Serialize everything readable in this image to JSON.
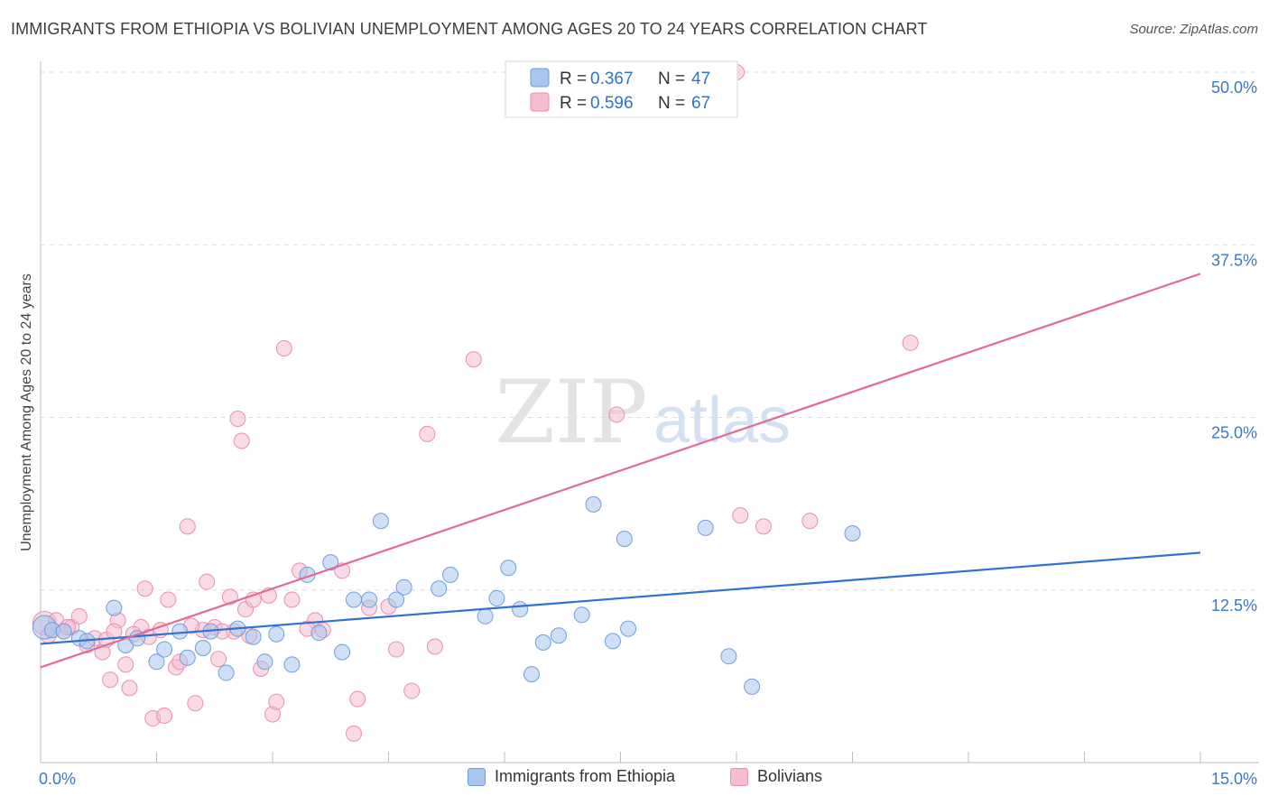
{
  "title": "IMMIGRANTS FROM ETHIOPIA VS BOLIVIAN UNEMPLOYMENT AMONG AGES 20 TO 24 YEARS CORRELATION CHART",
  "source": "Source: ZipAtlas.com",
  "watermark": {
    "zip": "ZIP",
    "atlas": "atlas"
  },
  "colors": {
    "blue_fill": "#a8c6ee",
    "blue_stroke": "#6f9fdc",
    "blue_line": "#2f72cf",
    "pink_fill": "#f6bcd0",
    "pink_stroke": "#ea8fb0",
    "pink_line": "#e06b98",
    "tick_text": "#3a78c9",
    "grid": "#dddddd"
  },
  "legend_top": {
    "rows": [
      {
        "series": "blue",
        "r_label": "R =",
        "r_value": "0.367",
        "n_label": "N =",
        "n_value": "47"
      },
      {
        "series": "pink",
        "r_label": "R =",
        "r_value": "0.596",
        "n_label": "N =",
        "n_value": "67"
      }
    ]
  },
  "legend_bottom": [
    {
      "series": "blue",
      "label": "Immigrants from Ethiopia"
    },
    {
      "series": "pink",
      "label": "Bolivians"
    }
  ],
  "chart_data": {
    "type": "scatter",
    "title": "IMMIGRANTS FROM ETHIOPIA VS BOLIVIAN UNEMPLOYMENT AMONG AGES 20 TO 24 YEARS CORRELATION CHART",
    "xlabel": "",
    "ylabel": "Unemployment Among Ages 20 to 24 years",
    "xlim": [
      0,
      15
    ],
    "ylim": [
      0,
      50
    ],
    "x_tick_labels": [
      {
        "value": 0,
        "label": "0.0%"
      },
      {
        "value": 15,
        "label": "15.0%"
      }
    ],
    "y_tick_labels": [
      {
        "value": 12.5,
        "label": "12.5%"
      },
      {
        "value": 25,
        "label": "25.0%"
      },
      {
        "value": 37.5,
        "label": "37.5%"
      },
      {
        "value": 50,
        "label": "50.0%"
      }
    ],
    "series": [
      {
        "name": "Immigrants from Ethiopia",
        "color": "blue",
        "R": 0.367,
        "N": 47,
        "trend": {
          "x": [
            0,
            15
          ],
          "y": [
            8.6,
            15.2
          ]
        },
        "points": [
          [
            0.05,
            9.8
          ],
          [
            0.15,
            9.6
          ],
          [
            0.3,
            9.5
          ],
          [
            0.5,
            9.0
          ],
          [
            0.6,
            8.8
          ],
          [
            0.95,
            11.2
          ],
          [
            1.1,
            8.5
          ],
          [
            1.25,
            9.0
          ],
          [
            1.5,
            7.3
          ],
          [
            1.6,
            8.2
          ],
          [
            1.8,
            9.5
          ],
          [
            1.9,
            7.6
          ],
          [
            2.1,
            8.3
          ],
          [
            2.2,
            9.5
          ],
          [
            2.4,
            6.5
          ],
          [
            2.55,
            9.7
          ],
          [
            2.75,
            9.1
          ],
          [
            2.9,
            7.3
          ],
          [
            3.05,
            9.3
          ],
          [
            3.25,
            7.1
          ],
          [
            3.45,
            13.6
          ],
          [
            3.6,
            9.4
          ],
          [
            3.75,
            14.5
          ],
          [
            3.9,
            8.0
          ],
          [
            4.05,
            11.8
          ],
          [
            4.25,
            11.8
          ],
          [
            4.4,
            17.5
          ],
          [
            4.6,
            11.8
          ],
          [
            4.7,
            12.7
          ],
          [
            5.15,
            12.6
          ],
          [
            5.3,
            13.6
          ],
          [
            5.75,
            10.6
          ],
          [
            5.9,
            11.9
          ],
          [
            6.05,
            14.1
          ],
          [
            6.2,
            11.1
          ],
          [
            6.35,
            6.4
          ],
          [
            6.5,
            8.7
          ],
          [
            6.7,
            9.2
          ],
          [
            7.0,
            10.7
          ],
          [
            7.15,
            18.7
          ],
          [
            7.4,
            8.8
          ],
          [
            7.55,
            16.2
          ],
          [
            7.6,
            9.7
          ],
          [
            8.6,
            17.0
          ],
          [
            8.9,
            7.7
          ],
          [
            9.2,
            5.5
          ],
          [
            10.5,
            16.6
          ]
        ]
      },
      {
        "name": "Bolivians",
        "color": "pink",
        "R": 0.596,
        "N": 67,
        "trend": {
          "x": [
            0,
            15
          ],
          "y": [
            6.9,
            35.4
          ]
        },
        "points": [
          [
            0.05,
            10.1
          ],
          [
            0.1,
            9.2
          ],
          [
            0.2,
            10.3
          ],
          [
            0.3,
            9.5
          ],
          [
            0.4,
            9.8
          ],
          [
            0.5,
            10.6
          ],
          [
            0.6,
            8.5
          ],
          [
            0.7,
            9.0
          ],
          [
            0.8,
            8.0
          ],
          [
            0.9,
            6.0
          ],
          [
            1.0,
            10.3
          ],
          [
            1.1,
            7.1
          ],
          [
            1.15,
            5.4
          ],
          [
            1.3,
            9.8
          ],
          [
            1.35,
            12.6
          ],
          [
            1.4,
            9.1
          ],
          [
            1.45,
            3.2
          ],
          [
            1.55,
            9.6
          ],
          [
            1.6,
            3.4
          ],
          [
            1.65,
            11.8
          ],
          [
            1.75,
            6.9
          ],
          [
            1.8,
            7.3
          ],
          [
            1.9,
            17.1
          ],
          [
            2.0,
            4.3
          ],
          [
            2.1,
            9.6
          ],
          [
            2.15,
            13.1
          ],
          [
            2.25,
            9.8
          ],
          [
            2.3,
            7.5
          ],
          [
            2.45,
            12.0
          ],
          [
            2.5,
            9.5
          ],
          [
            2.55,
            24.9
          ],
          [
            2.6,
            23.3
          ],
          [
            2.65,
            11.1
          ],
          [
            2.75,
            11.8
          ],
          [
            2.85,
            6.8
          ],
          [
            2.95,
            12.1
          ],
          [
            3.0,
            3.5
          ],
          [
            3.05,
            4.4
          ],
          [
            3.15,
            30.0
          ],
          [
            3.25,
            11.8
          ],
          [
            3.35,
            13.9
          ],
          [
            3.55,
            10.3
          ],
          [
            3.65,
            9.6
          ],
          [
            3.9,
            13.9
          ],
          [
            4.05,
            2.1
          ],
          [
            4.1,
            4.6
          ],
          [
            4.25,
            11.2
          ],
          [
            4.5,
            11.3
          ],
          [
            4.6,
            8.2
          ],
          [
            4.8,
            5.2
          ],
          [
            5.0,
            23.8
          ],
          [
            5.1,
            8.4
          ],
          [
            5.6,
            29.2
          ],
          [
            7.45,
            25.2
          ],
          [
            9.05,
            17.9
          ],
          [
            9.35,
            17.1
          ],
          [
            9.95,
            17.5
          ],
          [
            11.25,
            30.4
          ],
          [
            9.0,
            50.0
          ],
          [
            0.35,
            9.8
          ],
          [
            1.2,
            9.3
          ],
          [
            2.35,
            9.5
          ],
          [
            3.45,
            9.7
          ],
          [
            0.85,
            8.9
          ],
          [
            1.95,
            9.9
          ],
          [
            2.7,
            9.2
          ],
          [
            0.95,
            9.5
          ]
        ]
      }
    ]
  }
}
